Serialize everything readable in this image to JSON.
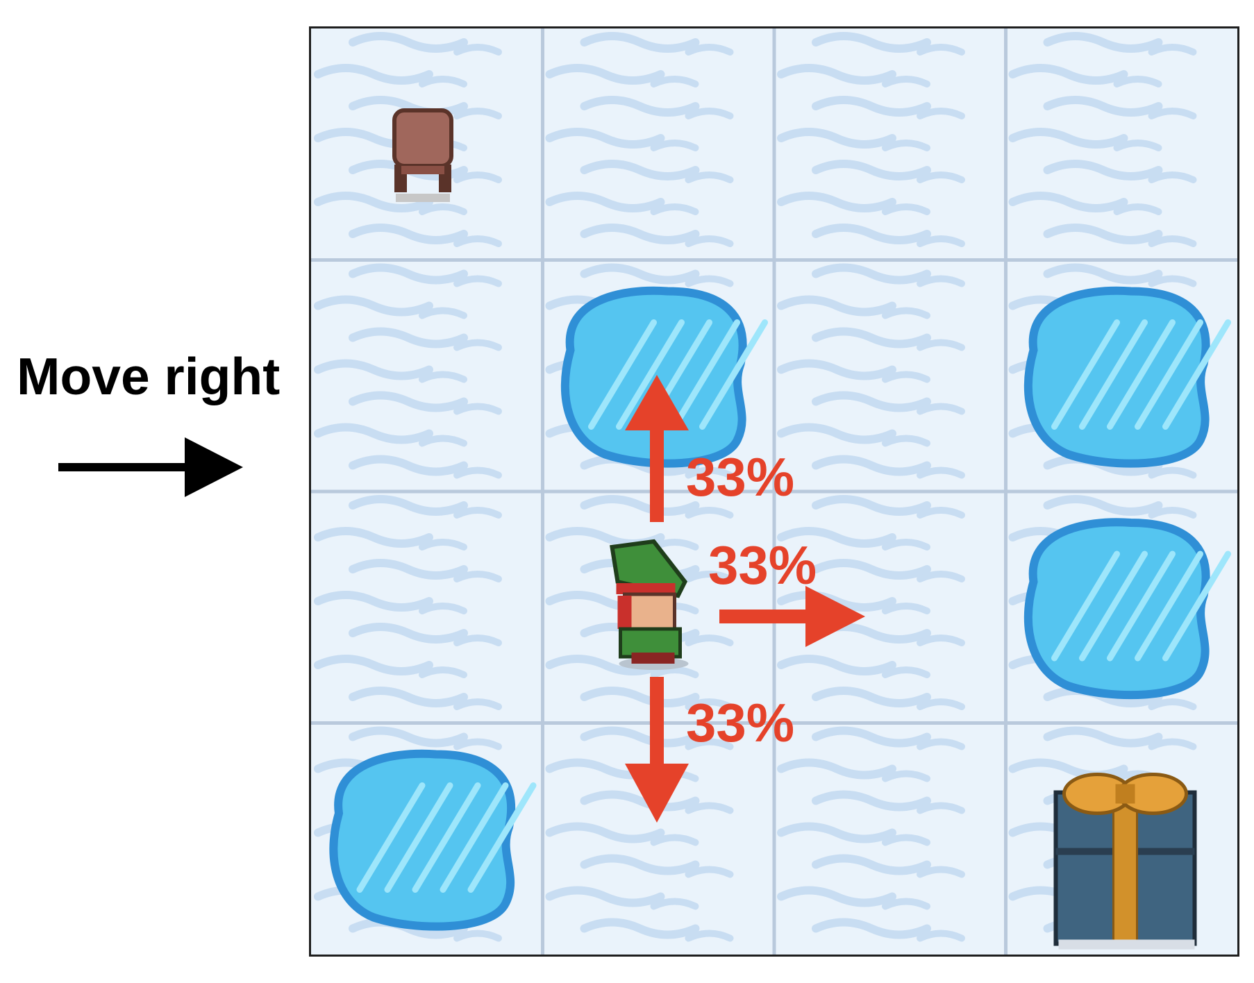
{
  "action": {
    "label": "Move right",
    "arrow_color": "#000000"
  },
  "grid": {
    "rows": 4,
    "cols": 4,
    "layout": [
      [
        "S",
        "F",
        "F",
        "F"
      ],
      [
        "F",
        "H",
        "F",
        "H"
      ],
      [
        "F",
        "F",
        "F",
        "H"
      ],
      [
        "H",
        "F",
        "F",
        "G"
      ]
    ],
    "colors": {
      "snow": "#eaf3fb",
      "snow_stripe": "#c8ddf2",
      "grid_line": "#b9c9dc",
      "hole_edge": "#2f8fd6",
      "hole_fill": "#55c5f0",
      "hole_shine": "#9ee6fb"
    }
  },
  "agent": {
    "icon": "elf-icon",
    "row": 2,
    "col": 1
  },
  "start": {
    "icon": "stool-icon",
    "row": 0,
    "col": 0
  },
  "goal": {
    "icon": "gift-icon",
    "row": 3,
    "col": 3
  },
  "transitions": {
    "color": "#e5422a",
    "up": {
      "direction": "up",
      "probability": "33%"
    },
    "right": {
      "direction": "right",
      "probability": "33%"
    },
    "down": {
      "direction": "down",
      "probability": "33%"
    }
  }
}
